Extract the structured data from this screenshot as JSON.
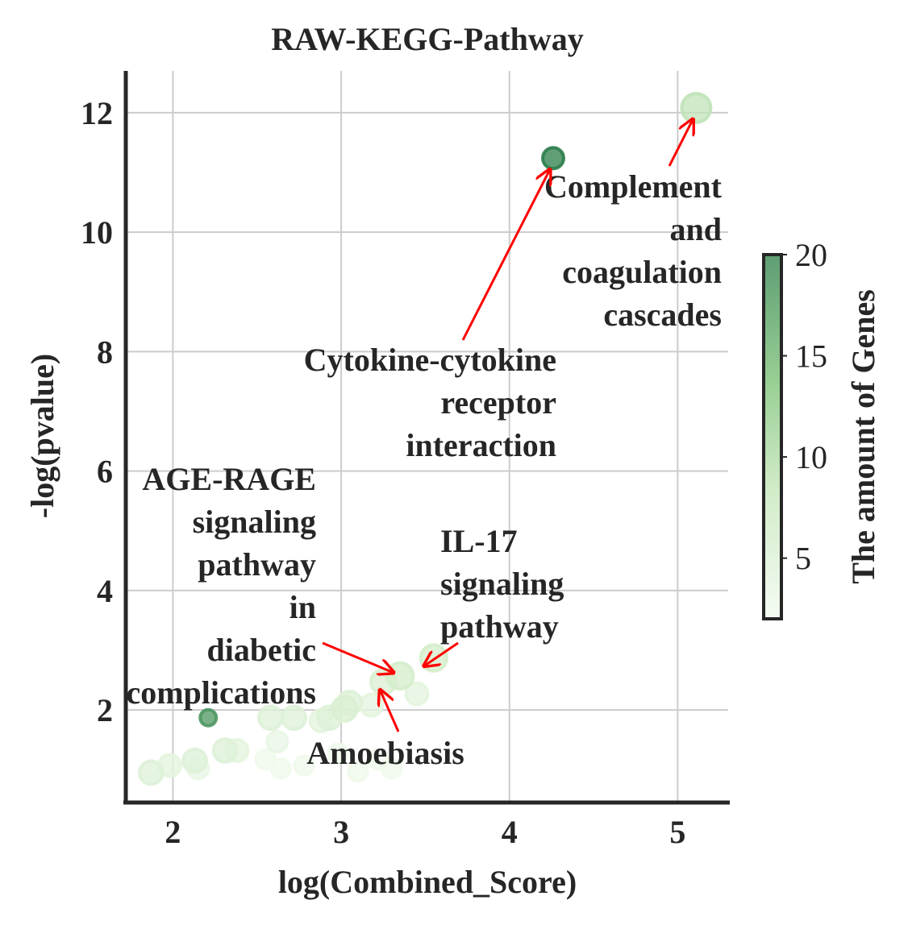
{
  "chart_data": {
    "type": "scatter",
    "title": "RAW-KEGG-Pathway",
    "xlabel": "log(Combined_Score)",
    "ylabel": "-log(pvalue)",
    "xlim": [
      1.72,
      5.3
    ],
    "ylim": [
      0.45,
      12.7
    ],
    "xticks": [
      2,
      3,
      4,
      5
    ],
    "yticks": [
      2,
      4,
      6,
      8,
      10,
      12
    ],
    "grid": true,
    "colorbar": {
      "label": "The amount of Genes",
      "min": 2,
      "max": 20,
      "ticks": [
        5,
        10,
        15,
        20
      ],
      "color_low": "#f4fbf2",
      "color_high": "#2b7d4a"
    },
    "points": [
      {
        "x": 5.11,
        "y": 12.08,
        "genes": 10
      },
      {
        "x": 4.26,
        "y": 11.24,
        "genes": 20
      },
      {
        "x": 2.21,
        "y": 1.87,
        "genes": 18
      },
      {
        "x": 3.55,
        "y": 2.87,
        "genes": 8
      },
      {
        "x": 3.35,
        "y": 2.57,
        "genes": 8
      },
      {
        "x": 3.25,
        "y": 2.47,
        "genes": 7
      },
      {
        "x": 3.45,
        "y": 2.27,
        "genes": 5
      },
      {
        "x": 3.05,
        "y": 2.12,
        "genes": 6
      },
      {
        "x": 3.02,
        "y": 2.02,
        "genes": 7
      },
      {
        "x": 3.18,
        "y": 2.08,
        "genes": 5
      },
      {
        "x": 2.93,
        "y": 1.87,
        "genes": 6
      },
      {
        "x": 2.88,
        "y": 1.82,
        "genes": 5
      },
      {
        "x": 2.72,
        "y": 1.87,
        "genes": 6
      },
      {
        "x": 2.58,
        "y": 1.87,
        "genes": 6
      },
      {
        "x": 2.62,
        "y": 1.47,
        "genes": 4
      },
      {
        "x": 2.38,
        "y": 1.32,
        "genes": 5
      },
      {
        "x": 2.31,
        "y": 1.32,
        "genes": 6
      },
      {
        "x": 2.13,
        "y": 1.15,
        "genes": 6
      },
      {
        "x": 2.15,
        "y": 1.02,
        "genes": 4
      },
      {
        "x": 1.98,
        "y": 1.07,
        "genes": 5
      },
      {
        "x": 1.87,
        "y": 0.95,
        "genes": 6
      },
      {
        "x": 2.55,
        "y": 1.17,
        "genes": 3
      },
      {
        "x": 2.64,
        "y": 1.02,
        "genes": 3
      },
      {
        "x": 2.78,
        "y": 1.07,
        "genes": 3
      },
      {
        "x": 3.1,
        "y": 0.97,
        "genes": 3
      },
      {
        "x": 3.3,
        "y": 1.02,
        "genes": 3
      },
      {
        "x": 2.98,
        "y": 1.27,
        "genes": 3
      },
      {
        "x": 3.22,
        "y": 1.17,
        "genes": 3
      }
    ],
    "annotations": [
      {
        "lines": [
          "Complement",
          "and",
          "coagulation",
          "cascades"
        ],
        "target": [
          5.11,
          12.08
        ]
      },
      {
        "lines": [
          "Cytokine-cytokine",
          "receptor",
          "interaction"
        ],
        "target": [
          4.26,
          11.24
        ]
      },
      {
        "lines": [
          "AGE-RAGE",
          "signaling",
          "pathway",
          "in",
          "diabetic",
          "complications"
        ],
        "target": [
          3.35,
          2.57
        ]
      },
      {
        "lines": [
          "IL-17",
          "signaling",
          "pathway"
        ],
        "target": [
          3.55,
          2.87
        ]
      },
      {
        "lines": [
          "Amoebiasis"
        ],
        "target": [
          3.25,
          2.47
        ]
      }
    ]
  }
}
